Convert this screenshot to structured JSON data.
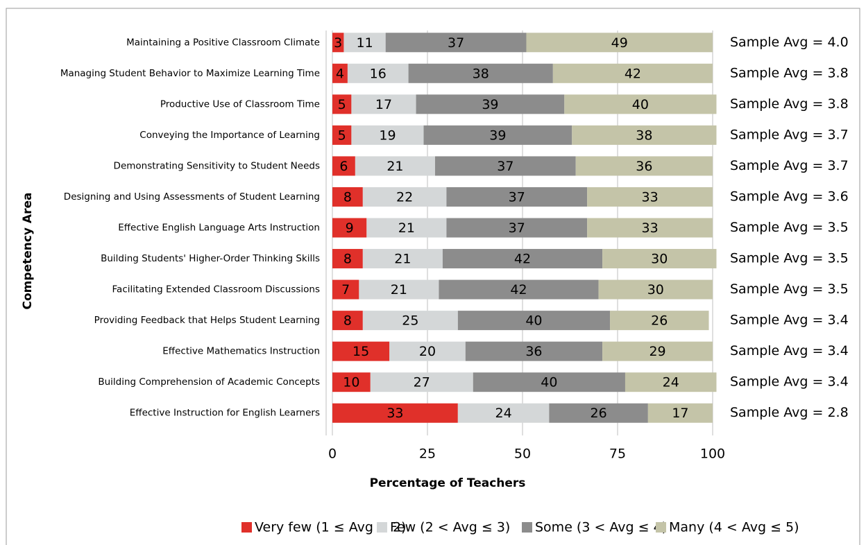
{
  "chart_data": {
    "type": "stacked_bar_horizontal",
    "x_label": "Percentage of Teachers",
    "y_label": "Competency Area",
    "categories": [
      "Maintaining a Positive Classroom Climate",
      "Managing Student Behavior to Maximize Learning Time",
      "Productive Use of Classroom Time",
      "Conveying the Importance of Learning",
      "Demonstrating Sensitivity to Student Needs",
      "Designing and Using Assessments of Student Learning",
      "Effective English Language Arts Instruction",
      "Building Students' Higher-Order Thinking Skills",
      "Facilitating Extended Classroom Discussions",
      "Providing Feedback that Helps Student Learning",
      "Effective Mathematics Instruction",
      "Building Comprehension of Academic Concepts",
      "Effective Instruction for English Learners"
    ],
    "series": [
      {
        "name": "Very few (1 ≤ Avg ≤ 2)",
        "color": "#e0302a",
        "label_color": "#ffffff",
        "values": [
          3,
          4,
          5,
          5,
          6,
          8,
          9,
          8,
          7,
          8,
          15,
          10,
          33
        ]
      },
      {
        "name": "Few (2 < Avg ≤ 3)",
        "color": "#d4d7d8",
        "label_color": "#000000",
        "values": [
          11,
          16,
          17,
          19,
          21,
          22,
          21,
          21,
          21,
          25,
          20,
          27,
          24
        ]
      },
      {
        "name": "Some (3 < Avg ≤ 4)",
        "color": "#8c8c8c",
        "label_color": "#000000",
        "values": [
          37,
          38,
          39,
          39,
          37,
          37,
          37,
          42,
          42,
          40,
          36,
          40,
          26
        ]
      },
      {
        "name": "Many (4 < Avg ≤ 5)",
        "color": "#c4c4a8",
        "label_color": "#000000",
        "values": [
          49,
          42,
          40,
          38,
          36,
          33,
          33,
          30,
          30,
          26,
          29,
          24,
          17
        ]
      }
    ],
    "annotations": [
      "Sample Avg = 4.0",
      "Sample Avg = 3.8",
      "Sample Avg = 3.8",
      "Sample Avg = 3.7",
      "Sample Avg = 3.7",
      "Sample Avg = 3.6",
      "Sample Avg = 3.5",
      "Sample Avg = 3.5",
      "Sample Avg = 3.5",
      "Sample Avg = 3.4",
      "Sample Avg = 3.4",
      "Sample Avg = 3.4",
      "Sample Avg = 2.8"
    ],
    "xlim": [
      0,
      100
    ],
    "xticks": [
      0,
      25,
      50,
      75,
      100
    ],
    "grid": true,
    "legend": "bottom"
  }
}
